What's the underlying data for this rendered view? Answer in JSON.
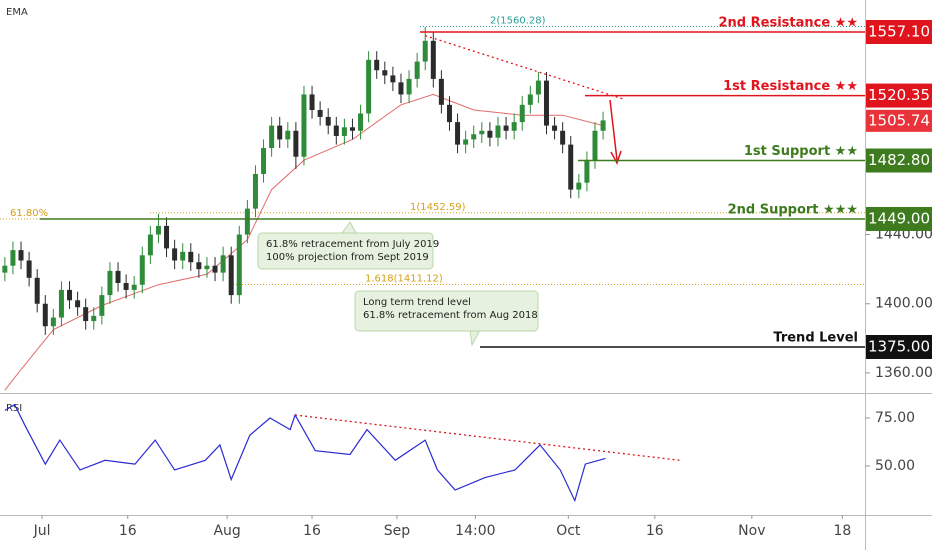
{
  "chart_data": [
    {
      "type": "candlestick",
      "label": "EMA",
      "xlim": [
        -0.6,
        106.4
      ],
      "ylim": [
        1348.4,
        1575.6
      ],
      "yticks": [
        {
          "value": 1360,
          "label": "1360.00"
        },
        {
          "value": 1400,
          "label": "1400.00"
        },
        {
          "value": 1440,
          "label": "1440.00"
        }
      ],
      "up_color": "#2e8b3a",
      "down_color": "#2b2b2b",
      "open": [
        1418,
        1422,
        1431,
        1425,
        1415,
        1400,
        1387,
        1392,
        1408,
        1402,
        1398,
        1390,
        1393,
        1405,
        1419,
        1412,
        1408,
        1411,
        1428,
        1440,
        1445,
        1432,
        1425,
        1430,
        1424,
        1420,
        1422,
        1418,
        1428,
        1405,
        1440,
        1455,
        1475,
        1490,
        1503,
        1495,
        1500,
        1485,
        1521,
        1512,
        1508,
        1503,
        1497,
        1502,
        1500,
        1510,
        1541,
        1535,
        1532,
        1528,
        1521,
        1530,
        1540,
        1552,
        1530,
        1515,
        1505,
        1492,
        1495,
        1498,
        1500,
        1496,
        1503,
        1500,
        1505,
        1515,
        1521,
        1529,
        1503,
        1500,
        1492,
        1466,
        1470,
        1483,
        1500
      ],
      "high": [
        1427,
        1436,
        1436,
        1430,
        1420,
        1405,
        1397,
        1413,
        1413,
        1407,
        1403,
        1398,
        1410,
        1424,
        1424,
        1417,
        1416,
        1433,
        1445,
        1452,
        1450,
        1437,
        1435,
        1435,
        1429,
        1427,
        1427,
        1433,
        1433,
        1445,
        1460,
        1480,
        1495,
        1508,
        1508,
        1505,
        1505,
        1526,
        1526,
        1517,
        1513,
        1508,
        1507,
        1507,
        1515,
        1546,
        1546,
        1540,
        1537,
        1533,
        1535,
        1545,
        1560,
        1557,
        1535,
        1520,
        1510,
        1500,
        1503,
        1505,
        1505,
        1508,
        1508,
        1510,
        1520,
        1526,
        1534,
        1534,
        1508,
        1505,
        1497,
        1475,
        1488,
        1505,
        1511
      ],
      "low": [
        1413,
        1417,
        1420,
        1410,
        1395,
        1382,
        1382,
        1387,
        1397,
        1393,
        1385,
        1385,
        1388,
        1400,
        1407,
        1403,
        1403,
        1406,
        1423,
        1435,
        1427,
        1420,
        1420,
        1419,
        1415,
        1415,
        1413,
        1413,
        1400,
        1400,
        1435,
        1450,
        1470,
        1485,
        1490,
        1490,
        1478,
        1480,
        1507,
        1503,
        1498,
        1492,
        1492,
        1495,
        1495,
        1505,
        1530,
        1527,
        1523,
        1516,
        1516,
        1525,
        1535,
        1525,
        1510,
        1500,
        1487,
        1487,
        1490,
        1493,
        1491,
        1491,
        1495,
        1495,
        1500,
        1510,
        1516,
        1498,
        1495,
        1487,
        1461,
        1461,
        1465,
        1478,
        1495
      ],
      "close": [
        1422,
        1431,
        1425,
        1415,
        1400,
        1387,
        1392,
        1408,
        1402,
        1398,
        1390,
        1393,
        1405,
        1419,
        1412,
        1408,
        1411,
        1428,
        1440,
        1445,
        1432,
        1425,
        1430,
        1424,
        1420,
        1422,
        1418,
        1428,
        1405,
        1440,
        1455,
        1475,
        1490,
        1503,
        1495,
        1500,
        1485,
        1521,
        1512,
        1508,
        1503,
        1497,
        1502,
        1500,
        1510,
        1541,
        1535,
        1532,
        1528,
        1521,
        1530,
        1540,
        1552,
        1530,
        1515,
        1505,
        1492,
        1495,
        1498,
        1500,
        1496,
        1503,
        1500,
        1505,
        1515,
        1521,
        1529,
        1503,
        1500,
        1492,
        1466,
        1470,
        1483,
        1500,
        1506
      ],
      "ema": {
        "color": "#e46a6a",
        "x": [
          0,
          2,
          6,
          12,
          19,
          25,
          30,
          33,
          37,
          43,
          49,
          53,
          58,
          64,
          69,
          74
        ],
        "values": [
          1350,
          1362,
          1385,
          1399,
          1411,
          1417,
          1437,
          1466,
          1483,
          1495,
          1515,
          1521,
          1512,
          1509,
          1509,
          1503
        ]
      },
      "trendline": {
        "color": "#e0141c",
        "x": [
          52,
          76.7
        ],
        "values": [
          1555,
          1518
        ]
      },
      "levels": [
        {
          "label": "2nd Resistance ★★",
          "value": 1557.1,
          "value_label": "1557.10",
          "color": "#e0141c"
        },
        {
          "label": "1st Resistance ★★",
          "value": 1520.35,
          "value_label": "1520.35",
          "color": "#e0141c"
        },
        {
          "label": "1st Support ★★",
          "value": 1482.8,
          "value_label": "1482.80",
          "color": "#3e7a1e"
        },
        {
          "label": "2nd Support ★★★",
          "value": 1449,
          "value_label": "1449.00",
          "color": "#3e7a1e"
        },
        {
          "label": "Trend Level",
          "value": 1375,
          "value_label": "1375.00",
          "color": "#111111"
        }
      ],
      "fibs": [
        {
          "label": "2(1560.28)",
          "value": 1560.28,
          "color": "#2aa198"
        },
        {
          "label": "1(1452.59)",
          "value": 1452.59,
          "color": "#d4a017"
        },
        {
          "label": "61.80%",
          "value": 1449,
          "color": "#d4a017"
        },
        {
          "label": "1.618(1411.12)",
          "value": 1411.12,
          "color": "#d4a017"
        }
      ],
      "last": {
        "value": 1505.74,
        "color": "#e8333a"
      },
      "annotations": [
        {
          "lines": [
            "61.8% retracement from July 2019",
            "100% projection from Sept 2019"
          ]
        },
        {
          "lines": [
            "Long term trend level",
            "61.8% retracement from Aug 2018"
          ]
        }
      ]
    },
    {
      "type": "line",
      "label": "RSI",
      "color": "#2b2bd0",
      "xlim": [
        -0.6,
        106.4
      ],
      "ylim": [
        24.5,
        87
      ],
      "yticks": [
        {
          "value": 50,
          "label": "50.00"
        },
        {
          "value": 75,
          "label": "75.00"
        }
      ],
      "x": [
        0,
        1.2,
        2.5,
        5,
        6.8,
        9.3,
        12.4,
        16.1,
        18.6,
        21,
        24.8,
        26.6,
        28,
        30.3,
        32.8,
        35.3,
        35.9,
        38.4,
        42.7,
        44.8,
        48.3,
        52,
        53.5,
        55.7,
        59.4,
        63.1,
        66.2,
        68.7,
        70.5,
        71.8,
        74.3
      ],
      "values": [
        79,
        82,
        71,
        51,
        63.5,
        48,
        53,
        51,
        63.5,
        48,
        53,
        61,
        43,
        66,
        75,
        69,
        76.6,
        58,
        56,
        69,
        53,
        63.5,
        48,
        37.5,
        44,
        48,
        61,
        48,
        32,
        51,
        54
      ],
      "trendline": {
        "color": "#e0141c",
        "x": [
          35.9,
          83.5
        ],
        "values": [
          76.6,
          53
        ]
      },
      "xticks": [
        {
          "value": 4.6,
          "label": "Jul"
        },
        {
          "value": 15.2,
          "label": "16"
        },
        {
          "value": 27.5,
          "label": "Aug"
        },
        {
          "value": 38,
          "label": "16"
        },
        {
          "value": 48.5,
          "label": "Sep"
        },
        {
          "value": 58.2,
          "label": "14:00"
        },
        {
          "value": 69.7,
          "label": "Oct"
        },
        {
          "value": 80.4,
          "label": "16"
        },
        {
          "value": 92.4,
          "label": "Nov"
        },
        {
          "value": 103.6,
          "label": "18"
        }
      ]
    }
  ]
}
